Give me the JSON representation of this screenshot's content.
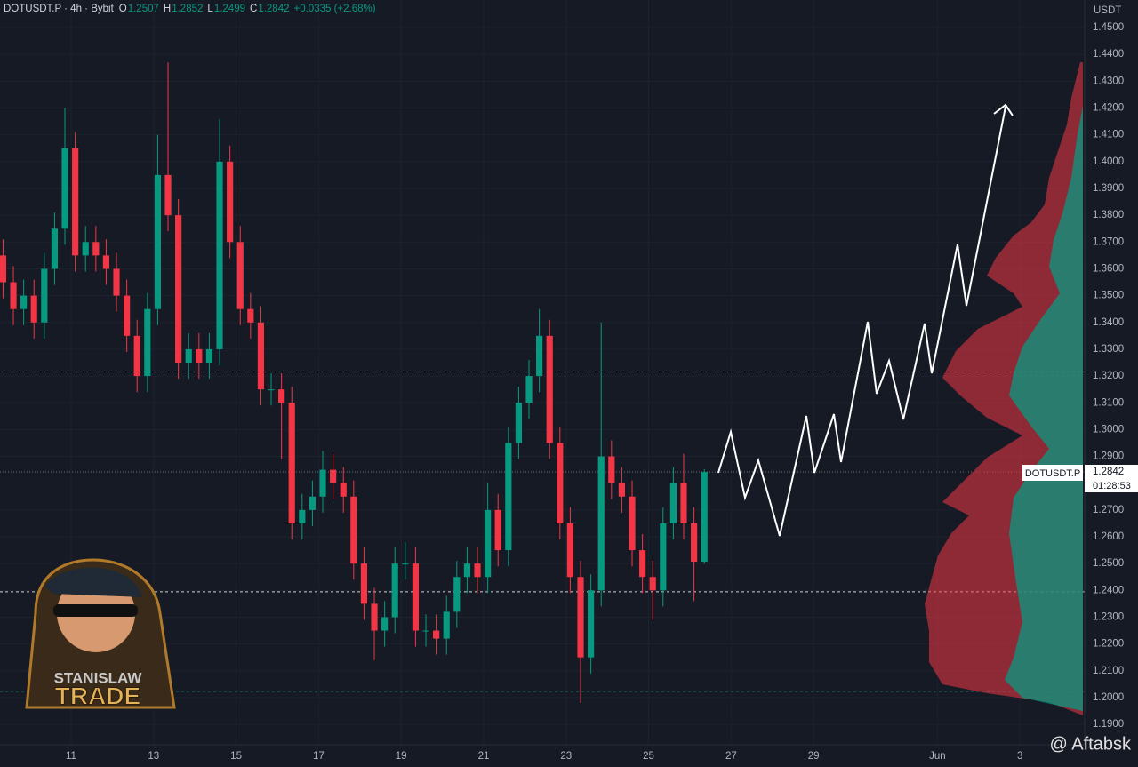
{
  "chart_data": {
    "type": "candlestick",
    "title": "DOTUSDT.P · 4h · Bybit",
    "ohlc_legend": [
      {
        "label": "O",
        "value": 1.2507
      },
      {
        "label": "H",
        "value": 1.2852
      },
      {
        "label": "L",
        "value": 1.2499
      },
      {
        "label": "C",
        "value": 1.2842
      }
    ],
    "change": "+0.0335 (+2.68%)",
    "y_unit": "USDT",
    "x": [
      9.35,
      9.6,
      9.85,
      10.1,
      10.35,
      10.6,
      10.85,
      11.1,
      11.35,
      11.6,
      11.85,
      12.1,
      12.35,
      12.6,
      12.85,
      13.1,
      13.35,
      13.6,
      13.85,
      14.1,
      14.35,
      14.6,
      14.85,
      15.1,
      15.35,
      15.6,
      15.85,
      16.1,
      16.35,
      16.6,
      16.85,
      17.1,
      17.35,
      17.6,
      17.85,
      18.1,
      18.35,
      18.6,
      18.85,
      19.1,
      19.35,
      19.6,
      19.85,
      20.1,
      20.35,
      20.6,
      20.85,
      21.1,
      21.35,
      21.6,
      21.85,
      22.1,
      22.35,
      22.6,
      22.85,
      23.1,
      23.35,
      23.6,
      23.85,
      24.1,
      24.35,
      24.6,
      24.85,
      25.1,
      25.35,
      25.6,
      25.85,
      26.1,
      26.35
    ],
    "open": [
      1.365,
      1.355,
      1.345,
      1.35,
      1.34,
      1.36,
      1.375,
      1.405,
      1.365,
      1.37,
      1.365,
      1.36,
      1.35,
      1.335,
      1.32,
      1.345,
      1.395,
      1.38,
      1.325,
      1.33,
      1.325,
      1.33,
      1.4,
      1.37,
      1.345,
      1.34,
      1.315,
      1.315,
      1.31,
      1.265,
      1.27,
      1.275,
      1.285,
      1.28,
      1.275,
      1.25,
      1.235,
      1.225,
      1.23,
      1.25,
      1.25,
      1.225,
      1.225,
      1.222,
      1.232,
      1.245,
      1.25,
      1.245,
      1.27,
      1.255,
      1.295,
      1.31,
      1.32,
      1.335,
      1.295,
      1.265,
      1.245,
      1.215,
      1.24,
      1.29,
      1.28,
      1.275,
      1.255,
      1.245,
      1.24,
      1.265,
      1.28,
      1.265,
      1.2507
    ],
    "high": [
      1.371,
      1.361,
      1.356,
      1.356,
      1.366,
      1.381,
      1.42,
      1.411,
      1.376,
      1.376,
      1.371,
      1.366,
      1.356,
      1.341,
      1.351,
      1.41,
      1.437,
      1.386,
      1.336,
      1.336,
      1.336,
      1.416,
      1.406,
      1.376,
      1.351,
      1.346,
      1.321,
      1.321,
      1.316,
      1.276,
      1.281,
      1.292,
      1.291,
      1.286,
      1.281,
      1.256,
      1.241,
      1.236,
      1.256,
      1.258,
      1.256,
      1.231,
      1.231,
      1.238,
      1.251,
      1.256,
      1.256,
      1.28,
      1.276,
      1.301,
      1.316,
      1.326,
      1.345,
      1.341,
      1.301,
      1.271,
      1.251,
      1.246,
      1.34,
      1.296,
      1.286,
      1.281,
      1.261,
      1.251,
      1.271,
      1.286,
      1.291,
      1.271,
      1.2852
    ],
    "low": [
      1.349,
      1.339,
      1.339,
      1.334,
      1.334,
      1.354,
      1.369,
      1.359,
      1.359,
      1.359,
      1.354,
      1.344,
      1.329,
      1.314,
      1.314,
      1.339,
      1.374,
      1.319,
      1.319,
      1.319,
      1.319,
      1.324,
      1.364,
      1.339,
      1.334,
      1.309,
      1.309,
      1.289,
      1.259,
      1.259,
      1.264,
      1.269,
      1.274,
      1.269,
      1.244,
      1.229,
      1.214,
      1.219,
      1.224,
      1.244,
      1.219,
      1.219,
      1.216,
      1.216,
      1.226,
      1.239,
      1.239,
      1.239,
      1.249,
      1.249,
      1.289,
      1.304,
      1.314,
      1.289,
      1.259,
      1.239,
      1.198,
      1.209,
      1.234,
      1.274,
      1.269,
      1.249,
      1.239,
      1.229,
      1.234,
      1.259,
      1.259,
      1.236,
      1.2499
    ],
    "close": [
      1.355,
      1.345,
      1.35,
      1.34,
      1.36,
      1.375,
      1.405,
      1.365,
      1.37,
      1.365,
      1.36,
      1.35,
      1.335,
      1.32,
      1.345,
      1.395,
      1.38,
      1.325,
      1.33,
      1.325,
      1.33,
      1.4,
      1.37,
      1.345,
      1.34,
      1.315,
      1.315,
      1.31,
      1.265,
      1.27,
      1.275,
      1.285,
      1.28,
      1.275,
      1.25,
      1.235,
      1.225,
      1.23,
      1.25,
      1.25,
      1.225,
      1.225,
      1.222,
      1.232,
      1.245,
      1.25,
      1.245,
      1.27,
      1.255,
      1.295,
      1.31,
      1.32,
      1.335,
      1.295,
      1.265,
      1.245,
      1.215,
      1.24,
      1.29,
      1.28,
      1.275,
      1.255,
      1.245,
      1.24,
      1.265,
      1.28,
      1.265,
      1.2507,
      1.2842
    ],
    "up_color": "#089981",
    "down_color": "#f23645",
    "ylim": [
      1.1824,
      1.4603
    ],
    "yticks": [
      {
        "value": 1.45,
        "label": "1.4500"
      },
      {
        "value": 1.44,
        "label": "1.4400"
      },
      {
        "value": 1.43,
        "label": "1.4300"
      },
      {
        "value": 1.42,
        "label": "1.4200"
      },
      {
        "value": 1.41,
        "label": "1.4100"
      },
      {
        "value": 1.4,
        "label": "1.4000"
      },
      {
        "value": 1.39,
        "label": "1.3900"
      },
      {
        "value": 1.38,
        "label": "1.3800"
      },
      {
        "value": 1.37,
        "label": "1.3700"
      },
      {
        "value": 1.36,
        "label": "1.3600"
      },
      {
        "value": 1.35,
        "label": "1.3500"
      },
      {
        "value": 1.34,
        "label": "1.3400"
      },
      {
        "value": 1.33,
        "label": "1.3300"
      },
      {
        "value": 1.32,
        "label": "1.3200"
      },
      {
        "value": 1.31,
        "label": "1.3100"
      },
      {
        "value": 1.3,
        "label": "1.3000"
      },
      {
        "value": 1.29,
        "label": "1.2900"
      },
      {
        "value": 1.27,
        "label": "1.2700"
      },
      {
        "value": 1.26,
        "label": "1.2600"
      },
      {
        "value": 1.25,
        "label": "1.2500"
      },
      {
        "value": 1.24,
        "label": "1.2400"
      },
      {
        "value": 1.23,
        "label": "1.2300"
      },
      {
        "value": 1.22,
        "label": "1.2200"
      },
      {
        "value": 1.21,
        "label": "1.2100"
      },
      {
        "value": 1.2,
        "label": "1.2000"
      },
      {
        "value": 1.19,
        "label": "1.1900"
      }
    ],
    "xlim": [
      9.276,
      35.57
    ],
    "xticks": [
      11,
      13,
      15,
      17,
      19,
      21,
      23,
      25,
      27,
      29,
      {
        "value": 32,
        "label": "Jun"
      },
      {
        "value": 34,
        "label": "3"
      }
    ],
    "hlines": [
      1.3215,
      1.2842,
      1.2395,
      1.2022
    ],
    "symbol_tag": "DOTUSDT.P",
    "last_price": 1.2842,
    "countdown": "01:28:53",
    "logo_text": [
      "STANISLAW",
      "TRADE"
    ],
    "watermark": "@ Aftabsk"
  }
}
